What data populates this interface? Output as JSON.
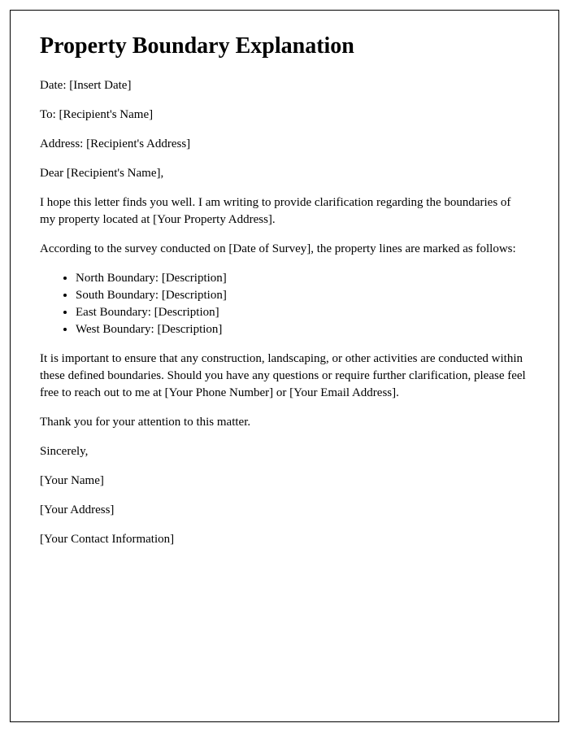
{
  "letter": {
    "title": "Property Boundary Explanation",
    "date_line": "Date: [Insert Date]",
    "to_line": "To: [Recipient's Name]",
    "address_line": "Address: [Recipient's Address]",
    "salutation": "Dear [Recipient's Name],",
    "intro_paragraph": "I hope this letter finds you well. I am writing to provide clarification regarding the boundaries of my property located at [Your Property Address].",
    "survey_paragraph": "According to the survey conducted on [Date of Survey], the property lines are marked as follows:",
    "boundaries": [
      {
        "label": "North Boundary: ",
        "desc": "[Description]"
      },
      {
        "label": "South Boundary: ",
        "desc": "[Description]"
      },
      {
        "label": "East Boundary: ",
        "desc": "[Description]"
      },
      {
        "label": "West Boundary: ",
        "desc": "[Description]"
      }
    ],
    "importance_paragraph": "It is important to ensure that any construction, landscaping, or other activities are conducted within these defined boundaries. Should you have any questions or require further clarification, please feel free to reach out to me at [Your Phone Number] or [Your Email Address].",
    "thanks_paragraph": "Thank you for your attention to this matter.",
    "closing": "Sincerely,",
    "sender_name": "[Your Name]",
    "sender_address": "[Your Address]",
    "sender_contact": "[Your Contact Information]"
  },
  "styles": {
    "border_color": "#000000",
    "text_color": "#000000",
    "background_color": "#ffffff",
    "title_fontsize": 28,
    "body_fontsize": 15,
    "font_family": "Times New Roman"
  }
}
